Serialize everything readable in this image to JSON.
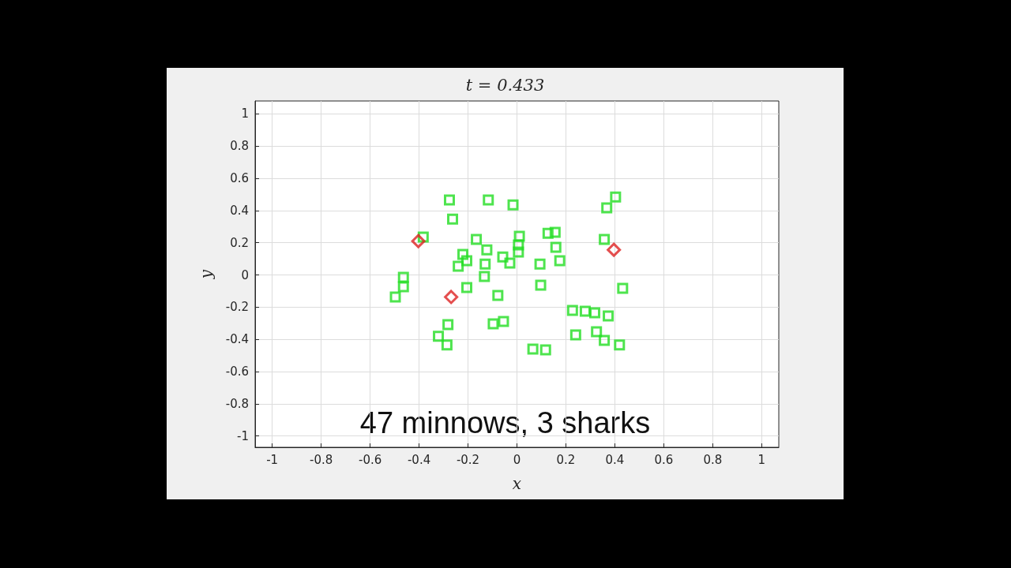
{
  "chart_data": {
    "type": "scatter",
    "title": "t = 0.433",
    "xlabel": "x",
    "ylabel": "y",
    "annotations": [
      "47 minnows, 3 sharks"
    ],
    "xlim": [
      -1.07,
      1.07
    ],
    "ylim": [
      -1.07,
      1.08
    ],
    "xticks": [
      -1,
      -0.8,
      -0.6,
      -0.4,
      -0.2,
      0,
      0.2,
      0.4,
      0.6,
      0.8,
      1
    ],
    "yticks": [
      -1,
      -0.8,
      -0.6,
      -0.4,
      -0.2,
      0,
      0.2,
      0.4,
      0.6,
      0.8,
      1
    ],
    "grid": true,
    "series": [
      {
        "color": "#22dd22",
        "marker": "square",
        "x": [
          -0.276,
          -0.117,
          -0.016,
          -0.263,
          -0.383,
          -0.166,
          0.01,
          0.006,
          0.006,
          -0.123,
          -0.221,
          -0.205,
          -0.24,
          -0.13,
          -0.058,
          -0.029,
          -0.133,
          -0.464,
          -0.464,
          -0.497,
          -0.205,
          -0.078,
          -0.282,
          -0.321,
          -0.286,
          -0.097,
          -0.055,
          0.127,
          0.156,
          0.159,
          0.175,
          0.094,
          0.097,
          0.065,
          0.117,
          0.227,
          0.279,
          0.318,
          0.373,
          0.24,
          0.325,
          0.357,
          0.419,
          0.432,
          0.357,
          0.367,
          0.403
        ],
        "values": [
          0.465,
          0.465,
          0.435,
          0.347,
          0.235,
          0.22,
          0.24,
          0.186,
          0.142,
          0.156,
          0.127,
          0.088,
          0.054,
          0.068,
          0.112,
          0.073,
          -0.01,
          -0.015,
          -0.073,
          -0.137,
          -0.078,
          -0.127,
          -0.308,
          -0.381,
          -0.435,
          -0.303,
          -0.289,
          0.259,
          0.264,
          0.171,
          0.088,
          0.068,
          -0.064,
          -0.46,
          -0.465,
          -0.22,
          -0.225,
          -0.235,
          -0.254,
          -0.372,
          -0.352,
          -0.406,
          -0.435,
          -0.083,
          0.22,
          0.416,
          0.484
        ]
      },
      {
        "color": "#dd2222",
        "marker": "diamond",
        "x": [
          -0.403,
          -0.269,
          0.396
        ],
        "values": [
          0.21,
          -0.137,
          0.156
        ]
      }
    ]
  }
}
